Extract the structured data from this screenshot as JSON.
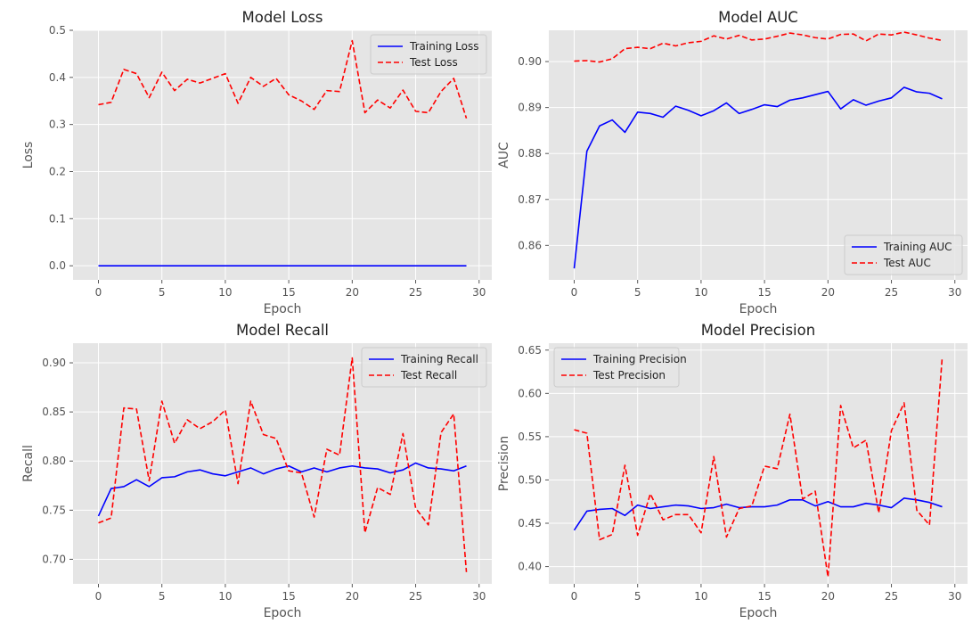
{
  "chart_data": [
    {
      "type": "line",
      "title": "Model Loss",
      "xlabel": "Epoch",
      "ylabel": "Loss",
      "xlim": [
        -2,
        31
      ],
      "ylim": [
        -0.03,
        0.5
      ],
      "xticks": [
        0,
        5,
        10,
        15,
        20,
        25,
        30
      ],
      "xtick_labels": [
        "0",
        "5",
        "10",
        "15",
        "20",
        "25",
        "30"
      ],
      "yticks": [
        0.0,
        0.1,
        0.2,
        0.3,
        0.4,
        0.5
      ],
      "ytick_labels": [
        "0.0",
        "0.1",
        "0.2",
        "0.3",
        "0.4",
        "0.5"
      ],
      "grid": true,
      "legend_position": "top-right",
      "x": [
        0,
        1,
        2,
        3,
        4,
        5,
        6,
        7,
        8,
        9,
        10,
        11,
        12,
        13,
        14,
        15,
        16,
        17,
        18,
        19,
        20,
        21,
        22,
        23,
        24,
        25,
        26,
        27,
        28,
        29
      ],
      "series": [
        {
          "name": "Training Loss",
          "color": "#0000ff",
          "style": "solid",
          "values": [
            0,
            0,
            0,
            0,
            0,
            0,
            0,
            0,
            0,
            0,
            0,
            0,
            0,
            0,
            0,
            0,
            0,
            0,
            0,
            0,
            0,
            0,
            0,
            0,
            0,
            0,
            0,
            0,
            0,
            0
          ]
        },
        {
          "name": "Test Loss",
          "color": "#ff0000",
          "style": "dashed",
          "values": [
            0.342,
            0.347,
            0.417,
            0.408,
            0.357,
            0.411,
            0.372,
            0.396,
            0.388,
            0.398,
            0.408,
            0.345,
            0.4,
            0.381,
            0.398,
            0.363,
            0.35,
            0.332,
            0.372,
            0.37,
            0.478,
            0.325,
            0.352,
            0.335,
            0.373,
            0.328,
            0.325,
            0.37,
            0.398,
            0.313
          ]
        }
      ]
    },
    {
      "type": "line",
      "title": "Model AUC",
      "xlabel": "Epoch",
      "ylabel": "AUC",
      "xlim": [
        -2,
        31
      ],
      "ylim": [
        0.8525,
        0.9068
      ],
      "xticks": [
        0,
        5,
        10,
        15,
        20,
        25,
        30
      ],
      "xtick_labels": [
        "0",
        "5",
        "10",
        "15",
        "20",
        "25",
        "30"
      ],
      "yticks": [
        0.86,
        0.87,
        0.88,
        0.89,
        0.9
      ],
      "ytick_labels": [
        "0.86",
        "0.87",
        "0.88",
        "0.89",
        "0.90"
      ],
      "grid": true,
      "legend_position": "bottom-right",
      "x": [
        0,
        1,
        2,
        3,
        4,
        5,
        6,
        7,
        8,
        9,
        10,
        11,
        12,
        13,
        14,
        15,
        16,
        17,
        18,
        19,
        20,
        21,
        22,
        23,
        24,
        25,
        26,
        27,
        28,
        29
      ],
      "series": [
        {
          "name": "Training AUC",
          "color": "#0000ff",
          "style": "solid",
          "values": [
            0.855,
            0.8805,
            0.886,
            0.8873,
            0.8846,
            0.889,
            0.8887,
            0.8879,
            0.8903,
            0.8894,
            0.8882,
            0.8893,
            0.891,
            0.8887,
            0.8896,
            0.8906,
            0.8902,
            0.8916,
            0.8921,
            0.8928,
            0.8935,
            0.8897,
            0.8917,
            0.8905,
            0.8914,
            0.8921,
            0.8944,
            0.8934,
            0.8931,
            0.8919
          ]
        },
        {
          "name": "Test AUC",
          "color": "#ff0000",
          "style": "dashed",
          "values": [
            0.9001,
            0.9002,
            0.8999,
            0.9006,
            0.9028,
            0.9031,
            0.9028,
            0.904,
            0.9034,
            0.9041,
            0.9044,
            0.9056,
            0.9049,
            0.9057,
            0.9047,
            0.9049,
            0.9055,
            0.9062,
            0.9058,
            0.9052,
            0.9049,
            0.9059,
            0.906,
            0.9045,
            0.906,
            0.9058,
            0.9064,
            0.9058,
            0.9051,
            0.9046
          ]
        }
      ]
    },
    {
      "type": "line",
      "title": "Model Recall",
      "xlabel": "Epoch",
      "ylabel": "Recall",
      "xlim": [
        -2,
        31
      ],
      "ylim": [
        0.675,
        0.92
      ],
      "xticks": [
        0,
        5,
        10,
        15,
        20,
        25,
        30
      ],
      "xtick_labels": [
        "0",
        "5",
        "10",
        "15",
        "20",
        "25",
        "30"
      ],
      "yticks": [
        0.7,
        0.75,
        0.8,
        0.85,
        0.9
      ],
      "ytick_labels": [
        "0.70",
        "0.75",
        "0.80",
        "0.85",
        "0.90"
      ],
      "grid": true,
      "legend_position": "top-right",
      "x": [
        0,
        1,
        2,
        3,
        4,
        5,
        6,
        7,
        8,
        9,
        10,
        11,
        12,
        13,
        14,
        15,
        16,
        17,
        18,
        19,
        20,
        21,
        22,
        23,
        24,
        25,
        26,
        27,
        28,
        29
      ],
      "series": [
        {
          "name": "Training Recall",
          "color": "#0000ff",
          "style": "solid",
          "values": [
            0.744,
            0.772,
            0.774,
            0.781,
            0.774,
            0.783,
            0.784,
            0.789,
            0.791,
            0.787,
            0.785,
            0.789,
            0.793,
            0.787,
            0.792,
            0.795,
            0.789,
            0.793,
            0.789,
            0.793,
            0.795,
            0.793,
            0.792,
            0.788,
            0.791,
            0.798,
            0.793,
            0.792,
            0.79,
            0.795
          ]
        },
        {
          "name": "Test Recall",
          "color": "#ff0000",
          "style": "dashed",
          "values": [
            0.737,
            0.742,
            0.854,
            0.853,
            0.78,
            0.861,
            0.818,
            0.842,
            0.833,
            0.84,
            0.852,
            0.777,
            0.861,
            0.827,
            0.823,
            0.79,
            0.788,
            0.743,
            0.812,
            0.806,
            0.905,
            0.727,
            0.773,
            0.766,
            0.828,
            0.752,
            0.735,
            0.829,
            0.848,
            0.687
          ]
        }
      ]
    },
    {
      "type": "line",
      "title": "Model Precision",
      "xlabel": "Epoch",
      "ylabel": "Precision",
      "xlim": [
        -2,
        31
      ],
      "ylim": [
        0.38,
        0.658
      ],
      "xticks": [
        0,
        5,
        10,
        15,
        20,
        25,
        30
      ],
      "xtick_labels": [
        "0",
        "5",
        "10",
        "15",
        "20",
        "25",
        "30"
      ],
      "yticks": [
        0.4,
        0.45,
        0.5,
        0.55,
        0.6,
        0.65
      ],
      "ytick_labels": [
        "0.40",
        "0.45",
        "0.50",
        "0.55",
        "0.60",
        "0.65"
      ],
      "grid": true,
      "legend_position": "top-left",
      "x": [
        0,
        1,
        2,
        3,
        4,
        5,
        6,
        7,
        8,
        9,
        10,
        11,
        12,
        13,
        14,
        15,
        16,
        17,
        18,
        19,
        20,
        21,
        22,
        23,
        24,
        25,
        26,
        27,
        28,
        29
      ],
      "series": [
        {
          "name": "Training Precision",
          "color": "#0000ff",
          "style": "solid",
          "values": [
            0.442,
            0.464,
            0.466,
            0.467,
            0.459,
            0.471,
            0.467,
            0.469,
            0.471,
            0.47,
            0.467,
            0.468,
            0.472,
            0.468,
            0.469,
            0.469,
            0.471,
            0.477,
            0.477,
            0.47,
            0.475,
            0.469,
            0.469,
            0.473,
            0.471,
            0.468,
            0.479,
            0.477,
            0.474,
            0.469
          ]
        },
        {
          "name": "Test Precision",
          "color": "#ff0000",
          "style": "dashed",
          "values": [
            0.558,
            0.554,
            0.431,
            0.437,
            0.517,
            0.436,
            0.484,
            0.454,
            0.46,
            0.46,
            0.439,
            0.527,
            0.434,
            0.467,
            0.47,
            0.516,
            0.513,
            0.576,
            0.478,
            0.487,
            0.388,
            0.586,
            0.537,
            0.546,
            0.462,
            0.557,
            0.589,
            0.465,
            0.448,
            0.641
          ]
        }
      ]
    }
  ]
}
